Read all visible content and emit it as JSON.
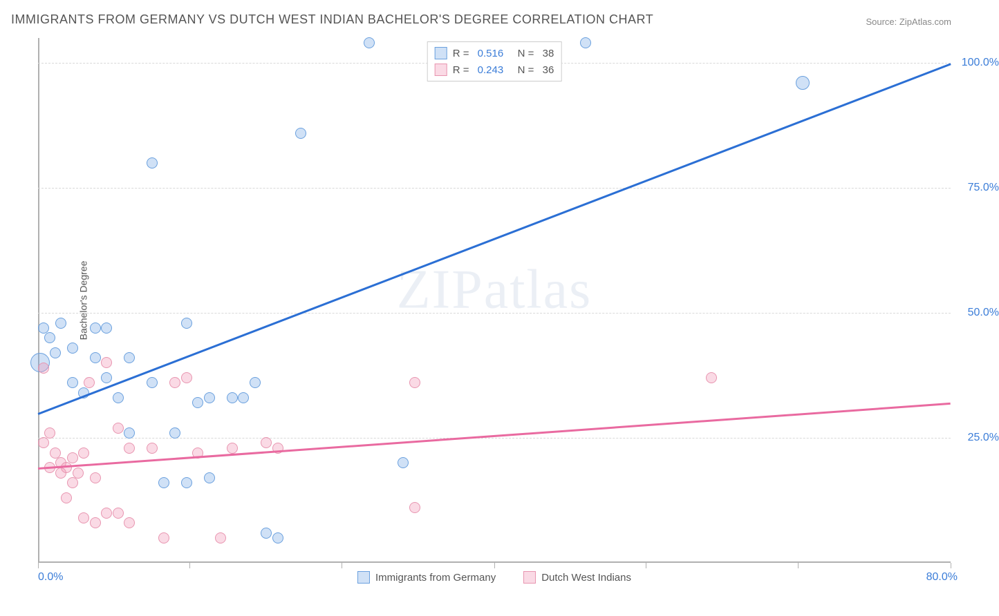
{
  "title": "IMMIGRANTS FROM GERMANY VS DUTCH WEST INDIAN BACHELOR'S DEGREE CORRELATION CHART",
  "source": "Source: ZipAtlas.com",
  "watermark": "ZIPatlas",
  "y_axis": {
    "label": "Bachelor's Degree"
  },
  "chart": {
    "type": "scatter",
    "xlim": [
      0,
      80
    ],
    "ylim": [
      0,
      105
    ],
    "x_ticks": [
      0,
      13.3,
      26.6,
      40,
      53.3,
      66.6,
      80
    ],
    "x_min_label": "0.0%",
    "x_max_label": "80.0%",
    "y_grid": [
      {
        "v": 25,
        "label": "25.0%"
      },
      {
        "v": 50,
        "label": "50.0%"
      },
      {
        "v": 75,
        "label": "75.0%"
      },
      {
        "v": 100,
        "label": "100.0%"
      }
    ],
    "grid_color": "#d8d8d8",
    "axis_color": "#b0b0b0",
    "background_color": "#ffffff"
  },
  "series": [
    {
      "name": "Immigrants from Germany",
      "color_fill": "rgba(120,170,230,0.35)",
      "color_stroke": "#6aa0de",
      "trend_color": "#2b6fd4",
      "R": "0.516",
      "N": "38",
      "trend": {
        "x0": 0,
        "y0": 30,
        "x1": 80,
        "y1": 100
      },
      "points": [
        {
          "x": 0.5,
          "y": 47,
          "r": 8
        },
        {
          "x": 0.2,
          "y": 40,
          "r": 14
        },
        {
          "x": 1,
          "y": 45,
          "r": 8
        },
        {
          "x": 1.5,
          "y": 42,
          "r": 8
        },
        {
          "x": 2,
          "y": 48,
          "r": 8
        },
        {
          "x": 3,
          "y": 36,
          "r": 8
        },
        {
          "x": 3,
          "y": 43,
          "r": 8
        },
        {
          "x": 4,
          "y": 34,
          "r": 8
        },
        {
          "x": 5,
          "y": 47,
          "r": 8
        },
        {
          "x": 5,
          "y": 41,
          "r": 8
        },
        {
          "x": 6,
          "y": 37,
          "r": 8
        },
        {
          "x": 6,
          "y": 47,
          "r": 8
        },
        {
          "x": 7,
          "y": 33,
          "r": 8
        },
        {
          "x": 8,
          "y": 41,
          "r": 8
        },
        {
          "x": 8,
          "y": 26,
          "r": 8
        },
        {
          "x": 10,
          "y": 80,
          "r": 8
        },
        {
          "x": 10,
          "y": 36,
          "r": 8
        },
        {
          "x": 11,
          "y": 16,
          "r": 8
        },
        {
          "x": 12,
          "y": 26,
          "r": 8
        },
        {
          "x": 13,
          "y": 48,
          "r": 8
        },
        {
          "x": 13,
          "y": 16,
          "r": 8
        },
        {
          "x": 14,
          "y": 32,
          "r": 8
        },
        {
          "x": 15,
          "y": 33,
          "r": 8
        },
        {
          "x": 15,
          "y": 17,
          "r": 8
        },
        {
          "x": 17,
          "y": 33,
          "r": 8
        },
        {
          "x": 18,
          "y": 33,
          "r": 8
        },
        {
          "x": 19,
          "y": 36,
          "r": 8
        },
        {
          "x": 20,
          "y": 6,
          "r": 8
        },
        {
          "x": 21,
          "y": 5,
          "r": 8
        },
        {
          "x": 23,
          "y": 86,
          "r": 8
        },
        {
          "x": 29,
          "y": 104,
          "r": 8
        },
        {
          "x": 32,
          "y": 20,
          "r": 8
        },
        {
          "x": 48,
          "y": 104,
          "r": 8
        },
        {
          "x": 67,
          "y": 96,
          "r": 10
        }
      ]
    },
    {
      "name": "Dutch West Indians",
      "color_fill": "rgba(240,150,180,0.35)",
      "color_stroke": "#e895b0",
      "trend_color": "#e96aa0",
      "R": "0.243",
      "N": "36",
      "trend": {
        "x0": 0,
        "y0": 19,
        "x1": 80,
        "y1": 32
      },
      "points": [
        {
          "x": 0.5,
          "y": 24,
          "r": 8
        },
        {
          "x": 0.5,
          "y": 39,
          "r": 8
        },
        {
          "x": 1,
          "y": 19,
          "r": 8
        },
        {
          "x": 1,
          "y": 26,
          "r": 8
        },
        {
          "x": 1.5,
          "y": 22,
          "r": 8
        },
        {
          "x": 2,
          "y": 18,
          "r": 8
        },
        {
          "x": 2,
          "y": 20,
          "r": 8
        },
        {
          "x": 2.5,
          "y": 13,
          "r": 8
        },
        {
          "x": 2.5,
          "y": 19,
          "r": 8
        },
        {
          "x": 3,
          "y": 16,
          "r": 8
        },
        {
          "x": 3,
          "y": 21,
          "r": 8
        },
        {
          "x": 3.5,
          "y": 18,
          "r": 8
        },
        {
          "x": 4,
          "y": 9,
          "r": 8
        },
        {
          "x": 4,
          "y": 22,
          "r": 8
        },
        {
          "x": 4.5,
          "y": 36,
          "r": 8
        },
        {
          "x": 5,
          "y": 8,
          "r": 8
        },
        {
          "x": 5,
          "y": 17,
          "r": 8
        },
        {
          "x": 6,
          "y": 10,
          "r": 8
        },
        {
          "x": 6,
          "y": 40,
          "r": 8
        },
        {
          "x": 7,
          "y": 10,
          "r": 8
        },
        {
          "x": 7,
          "y": 27,
          "r": 8
        },
        {
          "x": 8,
          "y": 8,
          "r": 8
        },
        {
          "x": 8,
          "y": 23,
          "r": 8
        },
        {
          "x": 10,
          "y": 23,
          "r": 8
        },
        {
          "x": 11,
          "y": 5,
          "r": 8
        },
        {
          "x": 12,
          "y": 36,
          "r": 8
        },
        {
          "x": 13,
          "y": 37,
          "r": 8
        },
        {
          "x": 14,
          "y": 22,
          "r": 8
        },
        {
          "x": 16,
          "y": 5,
          "r": 8
        },
        {
          "x": 17,
          "y": 23,
          "r": 8
        },
        {
          "x": 20,
          "y": 24,
          "r": 8
        },
        {
          "x": 21,
          "y": 23,
          "r": 8
        },
        {
          "x": 33,
          "y": 36,
          "r": 8
        },
        {
          "x": 33,
          "y": 11,
          "r": 8
        },
        {
          "x": 59,
          "y": 37,
          "r": 8
        }
      ]
    }
  ],
  "legend_bottom": [
    {
      "label": "Immigrants from Germany",
      "series": 0
    },
    {
      "label": "Dutch West Indians",
      "series": 1
    }
  ]
}
